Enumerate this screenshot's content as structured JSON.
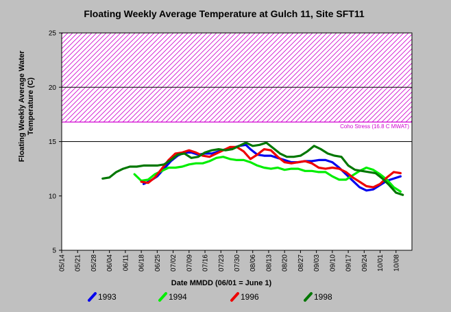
{
  "chart_data": {
    "type": "line",
    "title": "Floating Weekly Average Temperature at Gulch 11, Site SFT11",
    "xlabel": "Date MMDD (06/01 = June 1)",
    "ylabel_lines": [
      "Floating Weekly Average Water",
      "Temperature (C)"
    ],
    "x_ticks": [
      "05/14",
      "05/21",
      "05/28",
      "06/04",
      "06/11",
      "06/18",
      "06/25",
      "07/02",
      "07/09",
      "07/16",
      "07/23",
      "07/30",
      "08/06",
      "08/13",
      "08/20",
      "08/27",
      "09/03",
      "09/10",
      "09/17",
      "09/24",
      "10/01",
      "10/08"
    ],
    "xlim": [
      "05/14",
      "10/15"
    ],
    "ylim": [
      5,
      25
    ],
    "y_ticks": [
      5,
      10,
      15,
      20,
      25
    ],
    "grid": "horizontal lines at 15, 20, 25",
    "stress_band": {
      "label": "Coho Stress (16.8 C MWAT)",
      "from": 16.8,
      "to": 25,
      "color": "#d000d0",
      "pattern": "diagonal hatch"
    },
    "legend_position": "bottom",
    "series": [
      {
        "name": "1993",
        "color": "#0000ee",
        "points": [
          [
            "06/19",
            11.1
          ],
          [
            "06/22",
            11.4
          ],
          [
            "06/25",
            11.8
          ],
          [
            "06/28",
            12.5
          ],
          [
            "07/01",
            13.2
          ],
          [
            "07/04",
            13.7
          ],
          [
            "07/07",
            14.0
          ],
          [
            "07/10",
            14.0
          ],
          [
            "07/13",
            13.8
          ],
          [
            "07/16",
            13.9
          ],
          [
            "07/19",
            13.9
          ],
          [
            "07/22",
            14.1
          ],
          [
            "07/25",
            14.3
          ],
          [
            "07/28",
            14.4
          ],
          [
            "07/31",
            14.6
          ],
          [
            "08/03",
            14.7
          ],
          [
            "08/05",
            14.3
          ],
          [
            "08/08",
            13.8
          ],
          [
            "08/11",
            13.7
          ],
          [
            "08/14",
            13.7
          ],
          [
            "08/17",
            13.5
          ],
          [
            "08/20",
            13.3
          ],
          [
            "08/23",
            13.1
          ],
          [
            "08/26",
            13.1
          ],
          [
            "08/29",
            13.2
          ],
          [
            "09/01",
            13.2
          ],
          [
            "09/04",
            13.3
          ],
          [
            "09/07",
            13.3
          ],
          [
            "09/10",
            13.1
          ],
          [
            "09/13",
            12.6
          ],
          [
            "09/16",
            12.0
          ],
          [
            "09/19",
            11.4
          ],
          [
            "09/22",
            10.8
          ],
          [
            "09/25",
            10.5
          ],
          [
            "09/28",
            10.6
          ],
          [
            "10/01",
            11.0
          ],
          [
            "10/04",
            11.4
          ],
          [
            "10/07",
            11.6
          ],
          [
            "10/10",
            11.8
          ]
        ]
      },
      {
        "name": "1994",
        "color": "#00ee00",
        "points": [
          [
            "06/15",
            12.0
          ],
          [
            "06/18",
            11.4
          ],
          [
            "06/21",
            11.5
          ],
          [
            "06/24",
            12.0
          ],
          [
            "06/27",
            12.3
          ],
          [
            "06/30",
            12.6
          ],
          [
            "07/03",
            12.6
          ],
          [
            "07/06",
            12.7
          ],
          [
            "07/09",
            12.9
          ],
          [
            "07/12",
            13.0
          ],
          [
            "07/15",
            13.0
          ],
          [
            "07/18",
            13.2
          ],
          [
            "07/21",
            13.5
          ],
          [
            "07/24",
            13.6
          ],
          [
            "07/27",
            13.4
          ],
          [
            "07/30",
            13.3
          ],
          [
            "08/02",
            13.3
          ],
          [
            "08/05",
            13.1
          ],
          [
            "08/08",
            12.8
          ],
          [
            "08/11",
            12.6
          ],
          [
            "08/14",
            12.5
          ],
          [
            "08/17",
            12.6
          ],
          [
            "08/20",
            12.4
          ],
          [
            "08/23",
            12.5
          ],
          [
            "08/26",
            12.5
          ],
          [
            "08/29",
            12.3
          ],
          [
            "09/01",
            12.3
          ],
          [
            "09/04",
            12.2
          ],
          [
            "09/07",
            12.2
          ],
          [
            "09/10",
            11.8
          ],
          [
            "09/13",
            11.5
          ],
          [
            "09/16",
            11.5
          ],
          [
            "09/19",
            11.9
          ],
          [
            "09/22",
            12.3
          ],
          [
            "09/25",
            12.6
          ],
          [
            "09/28",
            12.4
          ],
          [
            "10/01",
            12.0
          ],
          [
            "10/04",
            11.5
          ],
          [
            "10/07",
            10.8
          ],
          [
            "10/10",
            10.4
          ]
        ]
      },
      {
        "name": "1996",
        "color": "#ee0000",
        "points": [
          [
            "06/18",
            11.3
          ],
          [
            "06/21",
            11.2
          ],
          [
            "06/24",
            11.7
          ],
          [
            "06/27",
            12.5
          ],
          [
            "06/30",
            13.3
          ],
          [
            "07/03",
            13.9
          ],
          [
            "07/06",
            14.0
          ],
          [
            "07/09",
            14.2
          ],
          [
            "07/12",
            14.0
          ],
          [
            "07/15",
            13.7
          ],
          [
            "07/18",
            13.6
          ],
          [
            "07/21",
            13.9
          ],
          [
            "07/24",
            14.2
          ],
          [
            "07/27",
            14.5
          ],
          [
            "07/30",
            14.5
          ],
          [
            "08/02",
            14.1
          ],
          [
            "08/05",
            13.4
          ],
          [
            "08/08",
            13.8
          ],
          [
            "08/11",
            14.3
          ],
          [
            "08/14",
            14.2
          ],
          [
            "08/17",
            13.6
          ],
          [
            "08/20",
            13.1
          ],
          [
            "08/23",
            13.0
          ],
          [
            "08/26",
            13.1
          ],
          [
            "08/29",
            13.2
          ],
          [
            "09/01",
            13.0
          ],
          [
            "09/04",
            12.6
          ],
          [
            "09/07",
            12.5
          ],
          [
            "09/10",
            12.6
          ],
          [
            "09/13",
            12.5
          ],
          [
            "09/16",
            12.2
          ],
          [
            "09/19",
            11.7
          ],
          [
            "09/22",
            11.3
          ],
          [
            "09/25",
            10.9
          ],
          [
            "09/28",
            10.8
          ],
          [
            "10/01",
            11.1
          ],
          [
            "10/04",
            11.7
          ],
          [
            "10/07",
            12.2
          ],
          [
            "10/10",
            12.1
          ]
        ]
      },
      {
        "name": "1998",
        "color": "#007700",
        "points": [
          [
            "06/01",
            11.6
          ],
          [
            "06/04",
            11.7
          ],
          [
            "06/07",
            12.2
          ],
          [
            "06/10",
            12.5
          ],
          [
            "06/13",
            12.7
          ],
          [
            "06/16",
            12.7
          ],
          [
            "06/19",
            12.8
          ],
          [
            "06/22",
            12.8
          ],
          [
            "06/25",
            12.8
          ],
          [
            "06/28",
            12.9
          ],
          [
            "07/01",
            13.3
          ],
          [
            "07/04",
            13.8
          ],
          [
            "07/07",
            13.9
          ],
          [
            "07/10",
            13.5
          ],
          [
            "07/13",
            13.6
          ],
          [
            "07/16",
            14.0
          ],
          [
            "07/19",
            14.2
          ],
          [
            "07/22",
            14.3
          ],
          [
            "07/25",
            14.2
          ],
          [
            "07/28",
            14.3
          ],
          [
            "07/31",
            14.6
          ],
          [
            "08/03",
            14.9
          ],
          [
            "08/06",
            14.6
          ],
          [
            "08/09",
            14.7
          ],
          [
            "08/12",
            14.9
          ],
          [
            "08/15",
            14.4
          ],
          [
            "08/18",
            13.9
          ],
          [
            "08/21",
            13.6
          ],
          [
            "08/24",
            13.6
          ],
          [
            "08/27",
            13.7
          ],
          [
            "08/30",
            14.1
          ],
          [
            "09/02",
            14.6
          ],
          [
            "09/05",
            14.3
          ],
          [
            "09/08",
            13.9
          ],
          [
            "09/11",
            13.7
          ],
          [
            "09/14",
            13.6
          ],
          [
            "09/17",
            12.8
          ],
          [
            "09/20",
            12.4
          ],
          [
            "09/23",
            12.3
          ],
          [
            "09/26",
            12.2
          ],
          [
            "09/29",
            12.1
          ],
          [
            "10/02",
            11.6
          ],
          [
            "10/05",
            11.0
          ],
          [
            "10/08",
            10.3
          ],
          [
            "10/11",
            10.1
          ]
        ]
      }
    ]
  }
}
